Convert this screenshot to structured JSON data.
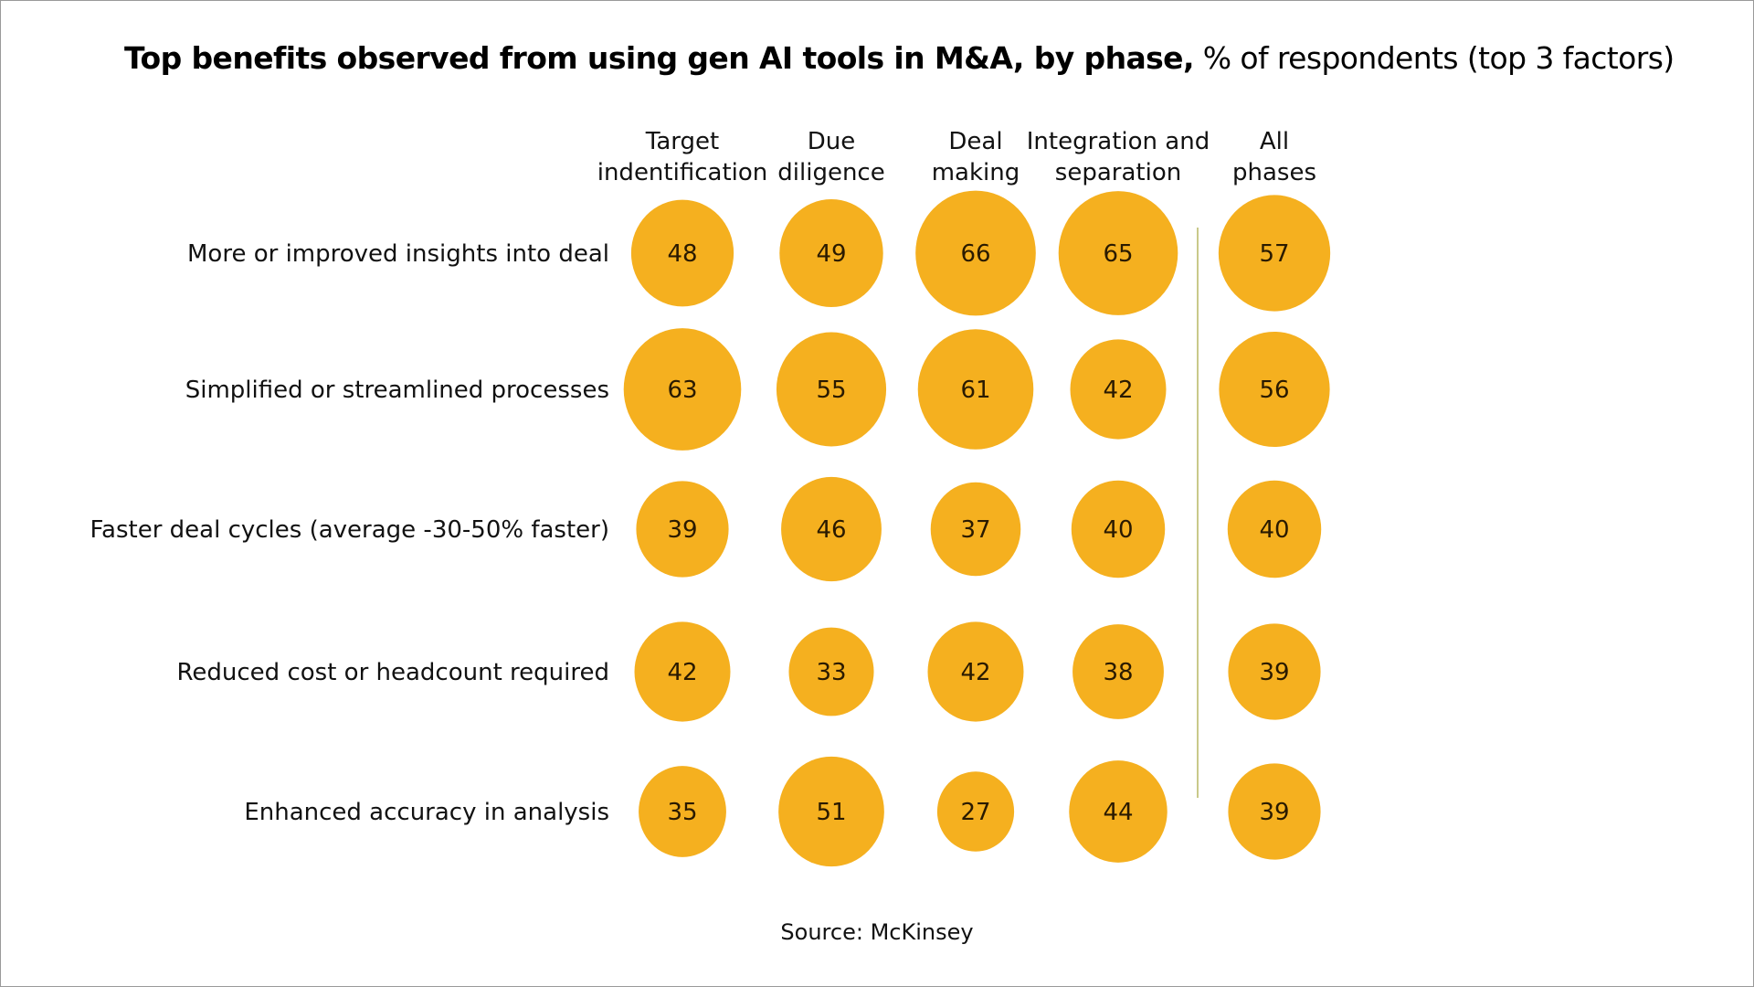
{
  "chart_data": {
    "type": "bubble-matrix",
    "title_bold": "Top benefits observed from using gen AI tools in M&A, by phase,",
    "title_regular": " % of respondents (top 3 factors)",
    "columns": [
      [
        "Target",
        "indentification"
      ],
      [
        "Due",
        "diligence"
      ],
      [
        "Deal",
        "making"
      ],
      [
        "Integration and",
        "separation"
      ],
      [
        "All",
        "phases"
      ]
    ],
    "rows": [
      "More or improved insights into deal",
      "Simplified or streamlined processes",
      "Faster deal cycles (average -30-50% faster)",
      "Reduced cost or headcount required",
      "Enhanced accuracy in analysis"
    ],
    "values": [
      [
        48,
        49,
        66,
        65,
        57
      ],
      [
        63,
        55,
        61,
        42,
        56
      ],
      [
        39,
        46,
        37,
        40,
        40
      ],
      [
        42,
        33,
        42,
        38,
        39
      ],
      [
        35,
        51,
        27,
        44,
        39
      ]
    ],
    "bubble_color": "#F5B01F",
    "divider_color": "#C9C98A",
    "source": "Source: McKinsey"
  }
}
